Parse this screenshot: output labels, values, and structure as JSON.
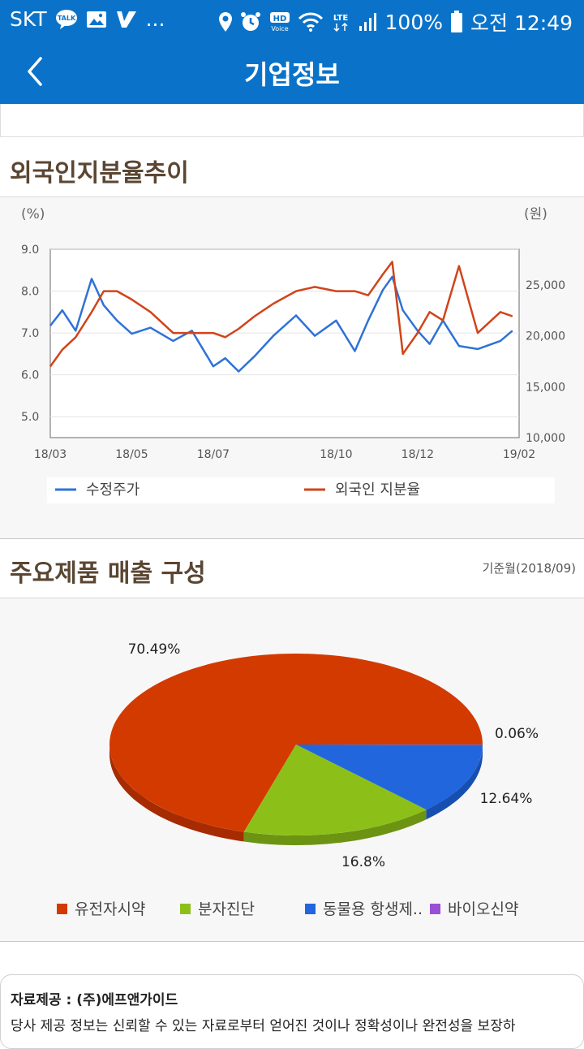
{
  "status_bar": {
    "carrier": "SKT",
    "more": "...",
    "battery": "100%",
    "time": "오전 12:49",
    "left_icons": [
      "kakaotalk-icon",
      "gallery-icon",
      "v3-icon"
    ],
    "right_icons": [
      "location-icon",
      "alarm-icon",
      "hd-voice-icon",
      "wifi-icon",
      "lte-icon",
      "signal-icon",
      "battery-icon"
    ],
    "hd_label": "HD",
    "voice_label": "Voice",
    "lte_label": "LTE"
  },
  "header": {
    "title": "기업정보"
  },
  "section_foreign": {
    "title": "외국인지분율추이"
  },
  "section_products": {
    "title": "주요제품 매출 구성",
    "base_date": "기준월(2018/09)"
  },
  "colors": {
    "primary": "#0a73c9",
    "price_line": "#2f72d6",
    "foreign_line": "#d1441a",
    "pie_red": "#d33a00",
    "pie_green": "#8cc019",
    "pie_blue": "#2166dd",
    "pie_purple": "#9b4fd6"
  },
  "chart_data": [
    {
      "type": "line",
      "title": "",
      "left_unit": "(%)",
      "right_unit": "(원)",
      "x_ticks": [
        "18/03",
        "18/05",
        "18/07",
        "18/10",
        "18/12",
        "19/02"
      ],
      "y_left_ticks": [
        "9.0",
        "8.0",
        "7.0",
        "6.0",
        "5.0"
      ],
      "y_right_ticks": [
        "25,000",
        "20,000",
        "15,000",
        "10,000"
      ],
      "ylim_left": [
        4.5,
        9.0
      ],
      "ylim_right": [
        10000,
        28500
      ],
      "series": [
        {
          "name": "수정주가",
          "axis": "right",
          "x": [
            "2018-03-01",
            "2018-03-10",
            "2018-03-20",
            "2018-04-01",
            "2018-04-10",
            "2018-04-20",
            "2018-05-01",
            "2018-05-15",
            "2018-06-01",
            "2018-06-15",
            "2018-07-01",
            "2018-07-10",
            "2018-07-20",
            "2018-08-01",
            "2018-08-15",
            "2018-09-01",
            "2018-09-15",
            "2018-10-01",
            "2018-10-15",
            "2018-10-25",
            "2018-11-05",
            "2018-11-12",
            "2018-11-20",
            "2018-12-01",
            "2018-12-10",
            "2018-12-20",
            "2019-01-01",
            "2019-01-15",
            "2019-02-01",
            "2019-02-10"
          ],
          "values": [
            21000,
            22500,
            20500,
            25600,
            23000,
            21500,
            20200,
            20800,
            19500,
            20500,
            17000,
            17800,
            16500,
            18000,
            20000,
            22000,
            20000,
            21500,
            18500,
            21500,
            24500,
            25800,
            22500,
            20500,
            19200,
            21500,
            19000,
            18700,
            19500,
            20500
          ]
        },
        {
          "name": "외국인 지분율",
          "axis": "left",
          "x": [
            "2018-03-01",
            "2018-03-10",
            "2018-03-20",
            "2018-04-01",
            "2018-04-10",
            "2018-04-20",
            "2018-05-01",
            "2018-05-15",
            "2018-06-01",
            "2018-06-15",
            "2018-07-01",
            "2018-07-10",
            "2018-07-20",
            "2018-08-01",
            "2018-08-15",
            "2018-09-01",
            "2018-09-15",
            "2018-10-01",
            "2018-10-15",
            "2018-10-25",
            "2018-11-05",
            "2018-11-12",
            "2018-11-20",
            "2018-12-01",
            "2018-12-10",
            "2018-12-20",
            "2019-01-01",
            "2019-01-15",
            "2019-02-01",
            "2019-02-10"
          ],
          "values": [
            6.2,
            6.6,
            6.9,
            7.5,
            8.0,
            8.0,
            7.8,
            7.5,
            7.0,
            7.0,
            7.0,
            6.9,
            7.1,
            7.4,
            7.7,
            8.0,
            8.1,
            8.0,
            8.0,
            7.9,
            8.4,
            8.7,
            6.5,
            7.0,
            7.5,
            7.3,
            8.6,
            7.0,
            7.5,
            7.4
          ]
        }
      ],
      "legend_placement": "bottom"
    },
    {
      "type": "pie",
      "title": "",
      "labels": [
        "유전자시약",
        "분자진단",
        "동물용 항생제..",
        "바이오신약"
      ],
      "values": [
        70.49,
        16.8,
        12.64,
        0.06
      ],
      "value_labels": [
        "70.49%",
        "16.8%",
        "12.64%",
        "0.06%"
      ],
      "legend_placement": "bottom"
    }
  ],
  "footer": {
    "source": "자료제공 : (주)에프앤가이드",
    "disclaimer": "당사 제공 정보는 신뢰할 수 있는 자료로부터 얻어진 것이나 정확성이나 완전성을 보장하"
  }
}
